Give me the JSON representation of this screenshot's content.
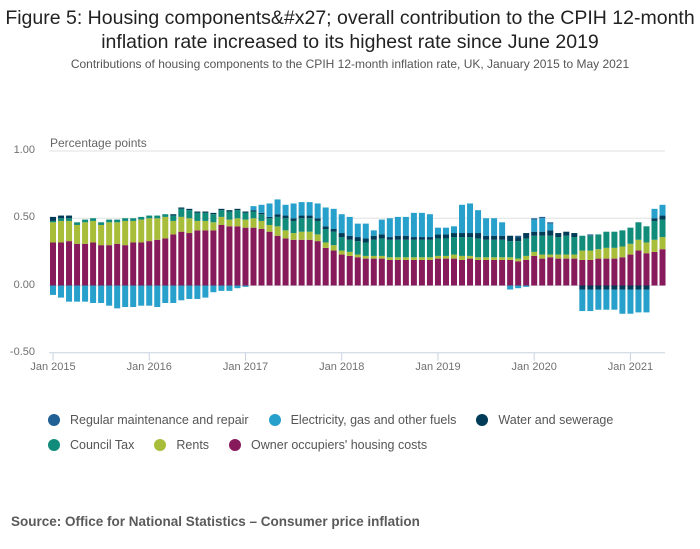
{
  "title": "Figure 5: Housing components&#x27; overall contribution to the CPIH 12-month inflation rate increased to its highest rate since June 2019",
  "subtitle": "Contributions of housing components to the CPIH 12-month inflation rate, UK, January 2015 to May 2021",
  "source": "Source: Office for National Statistics – Consumer price inflation",
  "chart_data": {
    "type": "bar",
    "stacked": true,
    "title": "Figure 5: Housing components&#x27; overall contribution to the CPIH 12-month inflation rate increased to its highest rate since June 2019",
    "subtitle": "Contributions of housing components to the CPIH 12-month inflation rate, UK, January 2015 to May 2021",
    "ylabel": "Percentage points",
    "xlabel": "",
    "ylim": [
      -0.5,
      1.0
    ],
    "yticks": [
      {
        "value": -0.5,
        "label": "-0.50"
      },
      {
        "value": 0.0,
        "label": "0.00"
      },
      {
        "value": 0.5,
        "label": "0.50"
      },
      {
        "value": 1.0,
        "label": "1.00"
      }
    ],
    "xticks": [
      {
        "index": 0,
        "label": "Jan 2015"
      },
      {
        "index": 12,
        "label": "Jan 2016"
      },
      {
        "index": 24,
        "label": "Jan 2017"
      },
      {
        "index": 36,
        "label": "Jan 2018"
      },
      {
        "index": 48,
        "label": "Jan 2019"
      },
      {
        "index": 60,
        "label": "Jan 2020"
      },
      {
        "index": 72,
        "label": "Jan 2021"
      }
    ],
    "grid": "horizontal",
    "legend_position": "bottom",
    "categories": [
      "Jan 2015",
      "Feb 2015",
      "Mar 2015",
      "Apr 2015",
      "May 2015",
      "Jun 2015",
      "Jul 2015",
      "Aug 2015",
      "Sep 2015",
      "Oct 2015",
      "Nov 2015",
      "Dec 2015",
      "Jan 2016",
      "Feb 2016",
      "Mar 2016",
      "Apr 2016",
      "May 2016",
      "Jun 2016",
      "Jul 2016",
      "Aug 2016",
      "Sep 2016",
      "Oct 2016",
      "Nov 2016",
      "Dec 2016",
      "Jan 2017",
      "Feb 2017",
      "Mar 2017",
      "Apr 2017",
      "May 2017",
      "Jun 2017",
      "Jul 2017",
      "Aug 2017",
      "Sep 2017",
      "Oct 2017",
      "Nov 2017",
      "Dec 2017",
      "Jan 2018",
      "Feb 2018",
      "Mar 2018",
      "Apr 2018",
      "May 2018",
      "Jun 2018",
      "Jul 2018",
      "Aug 2018",
      "Sep 2018",
      "Oct 2018",
      "Nov 2018",
      "Dec 2018",
      "Jan 2019",
      "Feb 2019",
      "Mar 2019",
      "Apr 2019",
      "May 2019",
      "Jun 2019",
      "Jul 2019",
      "Aug 2019",
      "Sep 2019",
      "Oct 2019",
      "Nov 2019",
      "Dec 2019",
      "Jan 2020",
      "Feb 2020",
      "Mar 2020",
      "Apr 2020",
      "May 2020",
      "Jun 2020",
      "Jul 2020",
      "Aug 2020",
      "Sep 2020",
      "Oct 2020",
      "Nov 2020",
      "Dec 2020",
      "Jan 2021",
      "Feb 2021",
      "Mar 2021",
      "Apr 2021",
      "May 2021"
    ],
    "stack_order": [
      "Owner occupiers' housing costs",
      "Rents",
      "Council Tax",
      "Water and sewerage",
      "Electricity, gas and other fuels",
      "Regular maintenance and repair"
    ],
    "series": [
      {
        "name": "Owner occupiers' housing costs",
        "color": "#871a5b",
        "values": [
          0.32,
          0.32,
          0.33,
          0.31,
          0.31,
          0.32,
          0.3,
          0.3,
          0.31,
          0.3,
          0.32,
          0.32,
          0.33,
          0.34,
          0.35,
          0.38,
          0.4,
          0.39,
          0.41,
          0.41,
          0.41,
          0.45,
          0.44,
          0.44,
          0.43,
          0.43,
          0.42,
          0.4,
          0.37,
          0.35,
          0.34,
          0.34,
          0.34,
          0.33,
          0.28,
          0.26,
          0.23,
          0.22,
          0.21,
          0.2,
          0.2,
          0.2,
          0.19,
          0.19,
          0.19,
          0.19,
          0.19,
          0.19,
          0.2,
          0.2,
          0.2,
          0.19,
          0.2,
          0.19,
          0.19,
          0.19,
          0.19,
          0.19,
          0.18,
          0.19,
          0.22,
          0.2,
          0.21,
          0.2,
          0.2,
          0.2,
          0.19,
          0.19,
          0.2,
          0.2,
          0.2,
          0.21,
          0.23,
          0.26,
          0.24,
          0.25,
          0.27
        ]
      },
      {
        "name": "Rents",
        "color": "#a8bd3a",
        "values": [
          0.15,
          0.16,
          0.15,
          0.14,
          0.16,
          0.16,
          0.15,
          0.17,
          0.16,
          0.18,
          0.16,
          0.17,
          0.17,
          0.16,
          0.16,
          0.1,
          0.11,
          0.11,
          0.07,
          0.07,
          0.06,
          0.06,
          0.05,
          0.06,
          0.06,
          0.07,
          0.06,
          0.05,
          0.07,
          0.06,
          0.05,
          0.06,
          0.06,
          0.05,
          0.04,
          0.04,
          0.03,
          0.03,
          0.02,
          0.02,
          0.02,
          0.02,
          0.02,
          0.02,
          0.02,
          0.02,
          0.02,
          0.02,
          0.02,
          0.02,
          0.03,
          0.03,
          0.02,
          0.02,
          0.02,
          0.02,
          0.02,
          0.02,
          0.02,
          0.03,
          0.03,
          0.03,
          0.02,
          0.03,
          0.03,
          0.03,
          0.07,
          0.07,
          0.07,
          0.08,
          0.08,
          0.08,
          0.08,
          0.08,
          0.08,
          0.09,
          0.09
        ]
      },
      {
        "name": "Council Tax",
        "color": "#118c7b",
        "values": [
          0.01,
          0.02,
          0.02,
          0.02,
          0.02,
          0.02,
          0.02,
          0.02,
          0.02,
          0.02,
          0.02,
          0.02,
          0.02,
          0.02,
          0.02,
          0.04,
          0.06,
          0.06,
          0.06,
          0.06,
          0.06,
          0.05,
          0.06,
          0.06,
          0.05,
          0.05,
          0.05,
          0.05,
          0.07,
          0.09,
          0.09,
          0.1,
          0.1,
          0.1,
          0.1,
          0.1,
          0.1,
          0.09,
          0.1,
          0.1,
          0.12,
          0.13,
          0.13,
          0.13,
          0.13,
          0.13,
          0.13,
          0.13,
          0.13,
          0.13,
          0.13,
          0.14,
          0.14,
          0.14,
          0.13,
          0.13,
          0.13,
          0.12,
          0.13,
          0.13,
          0.12,
          0.14,
          0.14,
          0.13,
          0.14,
          0.13,
          0.11,
          0.11,
          0.11,
          0.12,
          0.12,
          0.12,
          0.12,
          0.13,
          0.12,
          0.14,
          0.13
        ]
      },
      {
        "name": "Water and sewerage",
        "color": "#003c57",
        "values": [
          0.03,
          0.02,
          0.02,
          0.0,
          0.0,
          0.0,
          0.0,
          0.0,
          0.0,
          0.0,
          0.0,
          0.0,
          0.0,
          0.0,
          0.0,
          0.01,
          0.01,
          0.01,
          0.01,
          0.01,
          0.01,
          0.01,
          0.01,
          0.01,
          0.01,
          0.01,
          0.01,
          0.01,
          0.02,
          0.02,
          0.02,
          0.02,
          0.02,
          0.02,
          0.02,
          0.02,
          0.03,
          0.03,
          0.03,
          0.03,
          0.03,
          0.03,
          0.02,
          0.03,
          0.03,
          0.02,
          0.02,
          0.02,
          0.03,
          0.03,
          0.03,
          0.03,
          0.03,
          0.04,
          0.03,
          0.03,
          0.03,
          0.04,
          0.03,
          0.04,
          0.03,
          0.03,
          0.04,
          0.03,
          0.03,
          0.03,
          -0.03,
          -0.03,
          -0.03,
          -0.03,
          -0.03,
          -0.03,
          -0.03,
          -0.03,
          -0.03,
          0.02,
          0.03
        ]
      },
      {
        "name": "Electricity, gas and other fuels",
        "color": "#27a0cc",
        "values": [
          -0.07,
          -0.09,
          -0.12,
          -0.12,
          -0.12,
          -0.13,
          -0.13,
          -0.15,
          -0.17,
          -0.16,
          -0.16,
          -0.15,
          -0.15,
          -0.16,
          -0.13,
          -0.13,
          -0.11,
          -0.1,
          -0.1,
          -0.09,
          -0.05,
          -0.04,
          -0.04,
          -0.02,
          -0.01,
          0.03,
          0.06,
          0.1,
          0.11,
          0.08,
          0.11,
          0.1,
          0.1,
          0.11,
          0.14,
          0.15,
          0.14,
          0.14,
          0.1,
          0.11,
          0.04,
          0.11,
          0.14,
          0.14,
          0.14,
          0.18,
          0.18,
          0.17,
          0.05,
          0.05,
          0.05,
          0.21,
          0.22,
          0.17,
          0.13,
          0.13,
          0.1,
          -0.03,
          -0.02,
          -0.01,
          0.09,
          0.1,
          0.05,
          0.0,
          0.0,
          0.0,
          -0.16,
          -0.16,
          -0.15,
          -0.15,
          -0.15,
          -0.18,
          -0.18,
          -0.17,
          -0.17,
          0.07,
          0.08
        ]
      },
      {
        "name": "Regular maintenance and repair",
        "color": "#206095",
        "values": [
          0.0,
          0.0,
          0.0,
          0.0,
          0.0,
          0.0,
          0.0,
          0.0,
          0.0,
          0.0,
          0.0,
          0.0,
          0.0,
          0.0,
          0.0,
          0.0,
          0.0,
          0.0,
          0.0,
          0.0,
          0.0,
          0.0,
          0.0,
          0.0,
          0.0,
          0.0,
          0.0,
          0.0,
          0.0,
          0.0,
          0.0,
          0.0,
          0.0,
          0.0,
          0.0,
          0.0,
          0.0,
          0.0,
          0.0,
          0.0,
          0.0,
          0.0,
          0.0,
          0.0,
          0.0,
          0.0,
          0.0,
          0.0,
          0.0,
          0.0,
          0.0,
          0.0,
          0.0,
          0.0,
          0.0,
          0.0,
          0.0,
          0.0,
          0.01,
          0.0,
          0.01,
          0.01,
          0.01,
          0.0,
          0.0,
          0.0,
          0.0,
          0.01,
          0.0,
          0.0,
          0.0,
          0.0,
          0.0,
          0.0,
          0.0,
          0.0,
          0.0
        ]
      }
    ]
  },
  "legend": [
    {
      "label": "Regular maintenance and repair",
      "color": "#206095"
    },
    {
      "label": "Electricity, gas and other fuels",
      "color": "#27a0cc"
    },
    {
      "label": "Water and sewerage",
      "color": "#003c57"
    },
    {
      "label": "Council Tax",
      "color": "#118c7b"
    },
    {
      "label": "Rents",
      "color": "#a8bd3a"
    },
    {
      "label": "Owner occupiers' housing costs",
      "color": "#871a5b"
    }
  ]
}
